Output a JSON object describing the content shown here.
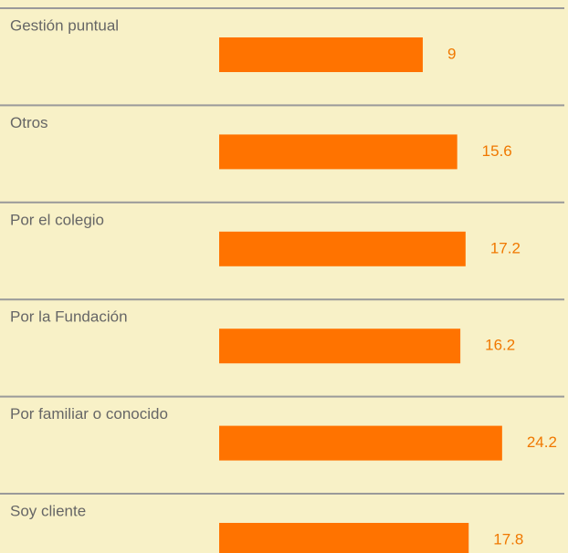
{
  "chart_data": {
    "type": "bar",
    "orientation": "horizontal",
    "categories": [
      "Gestión puntual",
      "Otros",
      "Por el colegio",
      "Por la Fundación",
      "Por familiar o conocido",
      "Soy cliente"
    ],
    "values": [
      9,
      15.6,
      17.2,
      16.2,
      24.2,
      17.8
    ],
    "color": "#ff7300",
    "xlim": [
      -30,
      30
    ]
  }
}
